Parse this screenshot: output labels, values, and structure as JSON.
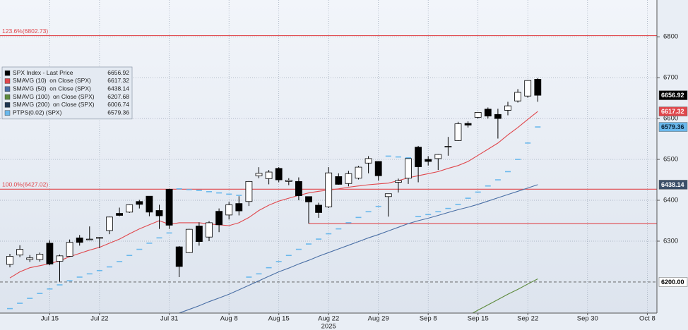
{
  "chart_data": {
    "type": "candlestick",
    "x": [
      "2025-07-09",
      "2025-07-10",
      "2025-07-11",
      "2025-07-14",
      "2025-07-15",
      "2025-07-16",
      "2025-07-17",
      "2025-07-18",
      "2025-07-21",
      "2025-07-22",
      "2025-07-23",
      "2025-07-24",
      "2025-07-25",
      "2025-07-28",
      "2025-07-29",
      "2025-07-30",
      "2025-07-31",
      "2025-08-01",
      "2025-08-04",
      "2025-08-05",
      "2025-08-06",
      "2025-08-07",
      "2025-08-08",
      "2025-08-11",
      "2025-08-12",
      "2025-08-13",
      "2025-08-14",
      "2025-08-15",
      "2025-08-18",
      "2025-08-19",
      "2025-08-20",
      "2025-08-21",
      "2025-08-22",
      "2025-08-25",
      "2025-08-26",
      "2025-08-27",
      "2025-08-28",
      "2025-08-29",
      "2025-09-02",
      "2025-09-03",
      "2025-09-04",
      "2025-09-05",
      "2025-09-08",
      "2025-09-09",
      "2025-09-10",
      "2025-09-11",
      "2025-09-12",
      "2025-09-15",
      "2025-09-16",
      "2025-09-17",
      "2025-09-18",
      "2025-09-19",
      "2025-09-22",
      "2025-09-23",
      "2025-09-24",
      "2025-09-25",
      "2025-09-26",
      "2025-09-29",
      "2025-09-30",
      "2025-10-01",
      "2025-10-02",
      "2025-10-03",
      "2025-10-06",
      "2025-10-07",
      "2025-10-08"
    ],
    "xticks": [
      {
        "value": "2025-07-15",
        "label": "Jul 15"
      },
      {
        "value": "2025-07-22",
        "label": "Jul 22"
      },
      {
        "value": "2025-07-31",
        "label": "Jul 31"
      },
      {
        "value": "2025-08-08",
        "label": "Aug 8"
      },
      {
        "value": "2025-08-15",
        "label": "Aug 15"
      },
      {
        "value": "2025-08-22",
        "label": "Aug 22"
      },
      {
        "value": "2025-08-29",
        "label": "Aug 29"
      },
      {
        "value": "2025-09-08",
        "label": "Sep 8"
      },
      {
        "value": "2025-09-15",
        "label": "Sep 15"
      },
      {
        "value": "2025-09-22",
        "label": "Sep 22"
      },
      {
        "value": "2025-09-30",
        "label": "Sep 30"
      },
      {
        "value": "2025-10-08",
        "label": "Oct 8"
      }
    ],
    "x_year": {
      "value": "2025-08-22",
      "label": "2025"
    },
    "ylim": [
      6124,
      6890
    ],
    "yticks": [
      6300,
      6400,
      6500,
      6600,
      6700,
      6800
    ],
    "grid": true,
    "legend": "top-left",
    "candles": {
      "name": "SPX Index - Last Price",
      "color": "#000000",
      "up_color": "#ffffff",
      "last": 6656.92,
      "open": [
        6243,
        6266,
        6255,
        6255,
        6295,
        6251,
        6263,
        6308,
        6304,
        6307,
        6326,
        6368,
        6371,
        6397,
        6410,
        6375,
        6427,
        6286,
        6272,
        6337,
        6310,
        6373,
        6364,
        6392,
        6397,
        6460,
        6453,
        6478,
        6446,
        6446,
        6409,
        6388,
        6384,
        6458,
        6441,
        6454,
        6491,
        6495,
        6409,
        6444,
        6454,
        6530,
        6500,
        6502,
        6531,
        6546,
        6588,
        6603,
        6623,
        6610,
        6620,
        6643,
        6655,
        6696,
        null,
        null,
        null,
        null,
        null,
        null,
        null,
        null,
        null,
        null,
        null
      ],
      "high": [
        6269,
        6290,
        6266,
        6272,
        6302,
        6267,
        6304,
        6315,
        6336,
        6310,
        6360,
        6382,
        6390,
        6401,
        6410,
        6389,
        6428,
        6288,
        6330,
        6346,
        6349,
        6380,
        6396,
        6410,
        6447,
        6481,
        6474,
        6481,
        6454,
        6456,
        6409,
        6394,
        6481,
        6466,
        6472,
        6484,
        6508,
        6495,
        6416,
        6453,
        6502,
        6533,
        6508,
        6513,
        6555,
        6592,
        6593,
        6616,
        6627,
        6624,
        6641,
        6672,
        6694,
        6699,
        null,
        null,
        null,
        null,
        null,
        null,
        null,
        null,
        null,
        null,
        null
      ],
      "low": [
        6236,
        6261,
        6249,
        6250,
        6241,
        6201,
        6262,
        6289,
        6303,
        6283,
        6317,
        6361,
        6369,
        6380,
        6361,
        6330,
        6330,
        6212,
        6271,
        6289,
        6300,
        6322,
        6353,
        6363,
        6386,
        6454,
        6439,
        6444,
        6437,
        6400,
        6343,
        6357,
        6381,
        6438,
        6434,
        6451,
        6466,
        6448,
        6360,
        6419,
        6440,
        6444,
        6485,
        6474,
        6509,
        6545,
        6578,
        6600,
        6600,
        6551,
        6608,
        6639,
        6651,
        6641,
        null,
        null,
        null,
        null,
        null,
        null,
        null,
        null,
        null,
        null,
        null
      ],
      "close": [
        6263,
        6280,
        6259,
        6268,
        6244,
        6264,
        6297,
        6297,
        6305,
        6309,
        6359,
        6363,
        6389,
        6390,
        6371,
        6362,
        6339,
        6238,
        6329,
        6299,
        6345,
        6340,
        6389,
        6374,
        6446,
        6466,
        6469,
        6450,
        6449,
        6411,
        6396,
        6370,
        6467,
        6439,
        6465,
        6481,
        6502,
        6460,
        6416,
        6448,
        6502,
        6482,
        6495,
        6512,
        6532,
        6587,
        6584,
        6615,
        6606,
        6600,
        6631,
        6664,
        6693,
        6656.92,
        null,
        null,
        null,
        null,
        null,
        null,
        null,
        null,
        null,
        null,
        null
      ]
    },
    "series": [
      {
        "name": "SMAVG (10)  on Close (SPX)",
        "color": "#e0474c",
        "last": 6617.32,
        "style": "line",
        "values": [
          6210,
          6225,
          6235,
          6240,
          6245,
          6252,
          6262,
          6270,
          6278,
          6285,
          6295,
          6305,
          6318,
          6330,
          6340,
          6350,
          6341,
          6345,
          6345,
          6345,
          6342,
          6340,
          6338,
          6345,
          6358,
          6375,
          6388,
          6398,
          6405,
          6412,
          6418,
          6422,
          6425,
          6428,
          6432,
          6435,
          6438,
          6440,
          6442,
          6448,
          6455,
          6460,
          6465,
          6470,
          6478,
          6485,
          6495,
          6510,
          6525,
          6540,
          6560,
          6578,
          6598,
          6617.32,
          null,
          null,
          null,
          null,
          null,
          null,
          null,
          null,
          null,
          null,
          null
        ]
      },
      {
        "name": "SMAVG (50)  on Close (SPX)",
        "color": "#4a6fa5",
        "last": 6438.14,
        "style": "line",
        "values": [
          null,
          null,
          null,
          null,
          null,
          null,
          null,
          null,
          null,
          null,
          null,
          null,
          null,
          null,
          null,
          null,
          6115,
          6124,
          6133,
          6142,
          6152,
          6161,
          6170,
          6181,
          6192,
          6203,
          6214,
          6225,
          6234,
          6244,
          6253,
          6263,
          6272,
          6281,
          6290,
          6299,
          6308,
          6316,
          6325,
          6334,
          6343,
          6350,
          6356,
          6363,
          6370,
          6377,
          6383,
          6390,
          6398,
          6406,
          6414,
          6422,
          6430,
          6438.14,
          null,
          null,
          null,
          null,
          null,
          null,
          null,
          null,
          null,
          null,
          null
        ]
      },
      {
        "name": "SMAVG (100)  on Close (SPX)",
        "color": "#5d8a3c",
        "last": 6207.68,
        "style": "line",
        "values": [
          null,
          null,
          null,
          null,
          null,
          null,
          null,
          null,
          null,
          null,
          null,
          null,
          null,
          null,
          null,
          null,
          null,
          null,
          null,
          null,
          null,
          null,
          null,
          null,
          null,
          null,
          null,
          null,
          null,
          null,
          null,
          null,
          null,
          null,
          null,
          null,
          null,
          null,
          null,
          null,
          null,
          null,
          null,
          null,
          null,
          null,
          6118,
          6131,
          6144,
          6157,
          6170,
          6182,
          6195,
          6207.68,
          null,
          null,
          null,
          null,
          null,
          null,
          null,
          null,
          null,
          null,
          null
        ]
      },
      {
        "name": "SMAVG (200)  on Close (SPX)",
        "color": "#1f3550",
        "last": 6006.74,
        "style": "line"
      },
      {
        "name": "PTPS(0.02) (SPX)",
        "color": "#6ab8ec",
        "last": 6579.36,
        "style": "dash",
        "values": [
          6135,
          6148,
          6160,
          6172,
          6183,
          6193,
          6203,
          6212,
          6220,
          6228,
          6237,
          6250,
          6265,
          6280,
          6295,
          6308,
          6320,
          6428,
          6426,
          6424,
          6421,
          6418,
          6415,
          6412,
          6212,
          6220,
          6235,
          6250,
          6265,
          6280,
          6293,
          6305,
          6318,
          6330,
          6345,
          6358,
          6372,
          6385,
          6508,
          6506,
          6504,
          6360,
          6365,
          6372,
          6380,
          6390,
          6405,
          6420,
          6435,
          6450,
          6470,
          6500,
          6540,
          6579.36,
          null,
          null,
          null,
          null,
          null,
          null,
          null,
          null,
          null,
          null,
          null
        ]
      }
    ],
    "levels": [
      {
        "value": 6802.73,
        "label": "123.6%(6802.73)"
      },
      {
        "value": 6427.02,
        "label": "100.0%(6427.02)"
      },
      {
        "value": 6343
      }
    ],
    "level_color": "#e0474c",
    "hline": {
      "value": 6200,
      "label": "6200.00"
    },
    "tags": [
      {
        "path": "chart_data.candles.last",
        "fill": "#000000",
        "text": "#ffffff"
      },
      {
        "path": "chart_data.series.0.last",
        "fill": "#e0474c",
        "text": "#ffffff"
      },
      {
        "path": "chart_data.series.4.last",
        "fill": "#6ab8ec",
        "text": "#0b2236"
      },
      {
        "path": "chart_data.series.1.last",
        "fill": "#3b4f68",
        "text": "#ffffff"
      }
    ]
  }
}
